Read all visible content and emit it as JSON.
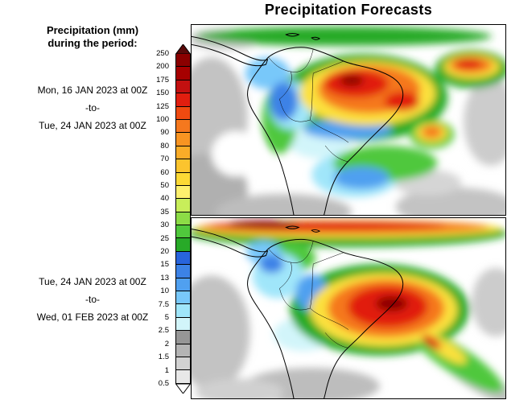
{
  "title": "Precipitation Forecasts",
  "legend": {
    "heading_line1": "Precipitation (mm)",
    "heading_line2": "during the period:",
    "period_top": {
      "start": "Mon, 16 JAN 2023 at 00Z",
      "separator": "-to-",
      "end": "Tue, 24 JAN 2023 at 00Z"
    },
    "period_bottom": {
      "start": "Tue, 24 JAN 2023 at 00Z",
      "separator": "-to-",
      "end": "Wed, 01 FEB 2023 at 00Z"
    }
  },
  "chart_data": {
    "type": "heatmap",
    "title": "Precipitation Forecasts",
    "units": "mm",
    "colorbar": {
      "orientation": "vertical",
      "tick_labels": [
        "250",
        "200",
        "175",
        "150",
        "125",
        "100",
        "90",
        "80",
        "70",
        "60",
        "50",
        "40",
        "35",
        "30",
        "25",
        "20",
        "15",
        "13",
        "10",
        "7.5",
        "5",
        "2.5",
        "2",
        "1.5",
        "1",
        "0.5"
      ],
      "cell_colors_top_to_bottom": [
        "#8b0000",
        "#a60000",
        "#c31010",
        "#e11e0f",
        "#ef4a10",
        "#f5781e",
        "#f89422",
        "#faac28",
        "#fbc42e",
        "#fcd935",
        "#fdf06e",
        "#c8ee5a",
        "#8cdc46",
        "#50c83c",
        "#28aa28",
        "#2864dc",
        "#3c82e6",
        "#50a0f0",
        "#78c8fa",
        "#a0e6fa",
        "#d2f5fa",
        "#969696",
        "#b4b4b4",
        "#d2d2d2",
        "#e8e8e8"
      ],
      "above_max_color": "#5a0a0a",
      "below_min_color": "#ffffff"
    },
    "panels": [
      {
        "region": "South America",
        "period_start": "Mon, 16 JAN 2023 at 00Z",
        "period_end": "Tue, 24 JAN 2023 at 00Z"
      },
      {
        "region": "South America",
        "period_start": "Tue, 24 JAN 2023 at 00Z",
        "period_end": "Wed, 01 FEB 2023 at 00Z"
      }
    ]
  }
}
